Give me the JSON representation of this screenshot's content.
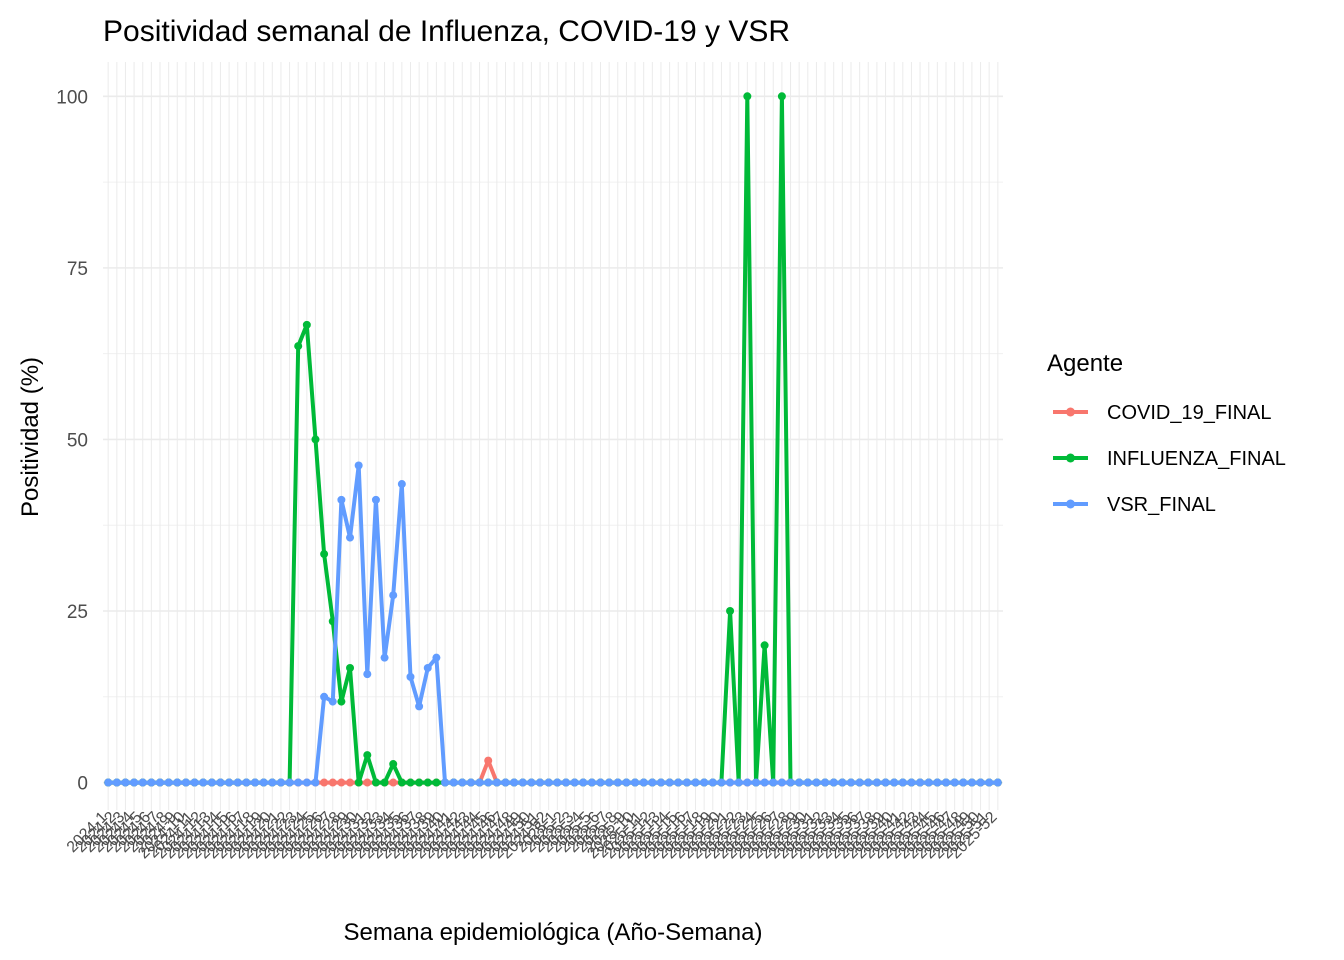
{
  "chart_data": {
    "type": "line",
    "title": "Positividad semanal de Influenza, COVID-19 y VSR",
    "xlabel": "Semana epidemiológica (Año-Semana)",
    "ylabel": "Positividad (%)",
    "ylim": [
      -4,
      105
    ],
    "yticks": [
      0,
      25,
      50,
      75,
      100
    ],
    "grid": true,
    "legend_title": "Agente",
    "legend_position": "right",
    "x": [
      "2024-1",
      "2024-2",
      "2024-3",
      "2024-4",
      "2024-5",
      "2024-6",
      "2024-7",
      "2024-8",
      "2024-9",
      "2024-10",
      "2024-11",
      "2024-12",
      "2024-13",
      "2024-14",
      "2024-15",
      "2024-16",
      "2024-17",
      "2024-18",
      "2024-19",
      "2024-20",
      "2024-21",
      "2024-22",
      "2024-23",
      "2024-24",
      "2024-25",
      "2024-26",
      "2024-27",
      "2024-28",
      "2024-29",
      "2024-30",
      "2024-31",
      "2024-32",
      "2024-33",
      "2024-34",
      "2024-35",
      "2024-36",
      "2024-37",
      "2024-38",
      "2024-39",
      "2024-40",
      "2024-41",
      "2024-42",
      "2024-43",
      "2024-44",
      "2024-45",
      "2024-46",
      "2024-47",
      "2024-48",
      "2024-49",
      "2024-50",
      "2024-51",
      "2024-52",
      "2025-1",
      "2025-2",
      "2025-3",
      "2025-4",
      "2025-5",
      "2025-6",
      "2025-7",
      "2025-8",
      "2025-9",
      "2025-10",
      "2025-11",
      "2025-12",
      "2025-13",
      "2025-14",
      "2025-15",
      "2025-16",
      "2025-17",
      "2025-18",
      "2025-19",
      "2025-20",
      "2025-21",
      "2025-22",
      "2025-23",
      "2025-24",
      "2025-25",
      "2025-26",
      "2025-27",
      "2025-28",
      "2025-29",
      "2025-30",
      "2025-31",
      "2025-32",
      "2025-33",
      "2025-34",
      "2025-35",
      "2025-36",
      "2025-37",
      "2025-38",
      "2025-39",
      "2025-40",
      "2025-41",
      "2025-42",
      "2025-43",
      "2025-44",
      "2025-45",
      "2025-46",
      "2025-47",
      "2025-48",
      "2025-49",
      "2025-50",
      "2025-51",
      "2025-52"
    ],
    "series": [
      {
        "name": "COVID_19_FINAL",
        "color": "#F8766D",
        "values": [
          0,
          0,
          0,
          0,
          0,
          0,
          0,
          0,
          0,
          0,
          0,
          0,
          0,
          0,
          0,
          0,
          0,
          0,
          0,
          0,
          0,
          0,
          0,
          0,
          0,
          0,
          0,
          0,
          0,
          0,
          0,
          0,
          0,
          0,
          0,
          0,
          0,
          0,
          0,
          0,
          0,
          0,
          0,
          0,
          3.2,
          0,
          0,
          0,
          0,
          0,
          0,
          0,
          0,
          0,
          0,
          0,
          0,
          0,
          0,
          0,
          0,
          0,
          0,
          0,
          0,
          0,
          0,
          0,
          0,
          0,
          0,
          0,
          0,
          0,
          0,
          0,
          0,
          0,
          0,
          0,
          0,
          0,
          0,
          0,
          0,
          0,
          0,
          0,
          0,
          0,
          0,
          0,
          0,
          0,
          0,
          0,
          0,
          0,
          0,
          0,
          0,
          0,
          0,
          0
        ]
      },
      {
        "name": "INFLUENZA_FINAL",
        "color": "#00BA38",
        "values": [
          0,
          0,
          0,
          0,
          0,
          0,
          0,
          0,
          0,
          0,
          0,
          0,
          0,
          0,
          0,
          0,
          0,
          0,
          0,
          0,
          0,
          0,
          63.6,
          66.7,
          50,
          33.3,
          23.5,
          11.8,
          16.7,
          0,
          4,
          0,
          0,
          2.7,
          0,
          0,
          0,
          0,
          0,
          0,
          0,
          0,
          0,
          0,
          0,
          0,
          0,
          0,
          0,
          0,
          0,
          0,
          0,
          0,
          0,
          0,
          0,
          0,
          0,
          0,
          0,
          0,
          0,
          0,
          0,
          0,
          0,
          0,
          0,
          0,
          0,
          0,
          25,
          0,
          100,
          0,
          20,
          0,
          100,
          0,
          0,
          0,
          0,
          0,
          0,
          0,
          0,
          0,
          0,
          0,
          0,
          0,
          0,
          0,
          0,
          0,
          0,
          0,
          0,
          0,
          0,
          0,
          0,
          0
        ]
      },
      {
        "name": "VSR_FINAL",
        "color": "#619CFF",
        "values": [
          0,
          0,
          0,
          0,
          0,
          0,
          0,
          0,
          0,
          0,
          0,
          0,
          0,
          0,
          0,
          0,
          0,
          0,
          0,
          0,
          0,
          0,
          0,
          0,
          0,
          12.5,
          11.8,
          41.2,
          35.7,
          46.2,
          15.8,
          41.2,
          18.2,
          27.3,
          43.5,
          15.4,
          11.1,
          16.7,
          18.2,
          0,
          0,
          0,
          0,
          0,
          0,
          0,
          0,
          0,
          0,
          0,
          0,
          0,
          0,
          0,
          0,
          0,
          0,
          0,
          0,
          0,
          0,
          0,
          0,
          0,
          0,
          0,
          0,
          0,
          0,
          0,
          0,
          0,
          0,
          0,
          0,
          0,
          0,
          0,
          0,
          0,
          0,
          0,
          0,
          0,
          0,
          0,
          0,
          0,
          0,
          0,
          0,
          0,
          0,
          0,
          0,
          0,
          0,
          0,
          0,
          0,
          0,
          0,
          0,
          0
        ]
      }
    ]
  }
}
